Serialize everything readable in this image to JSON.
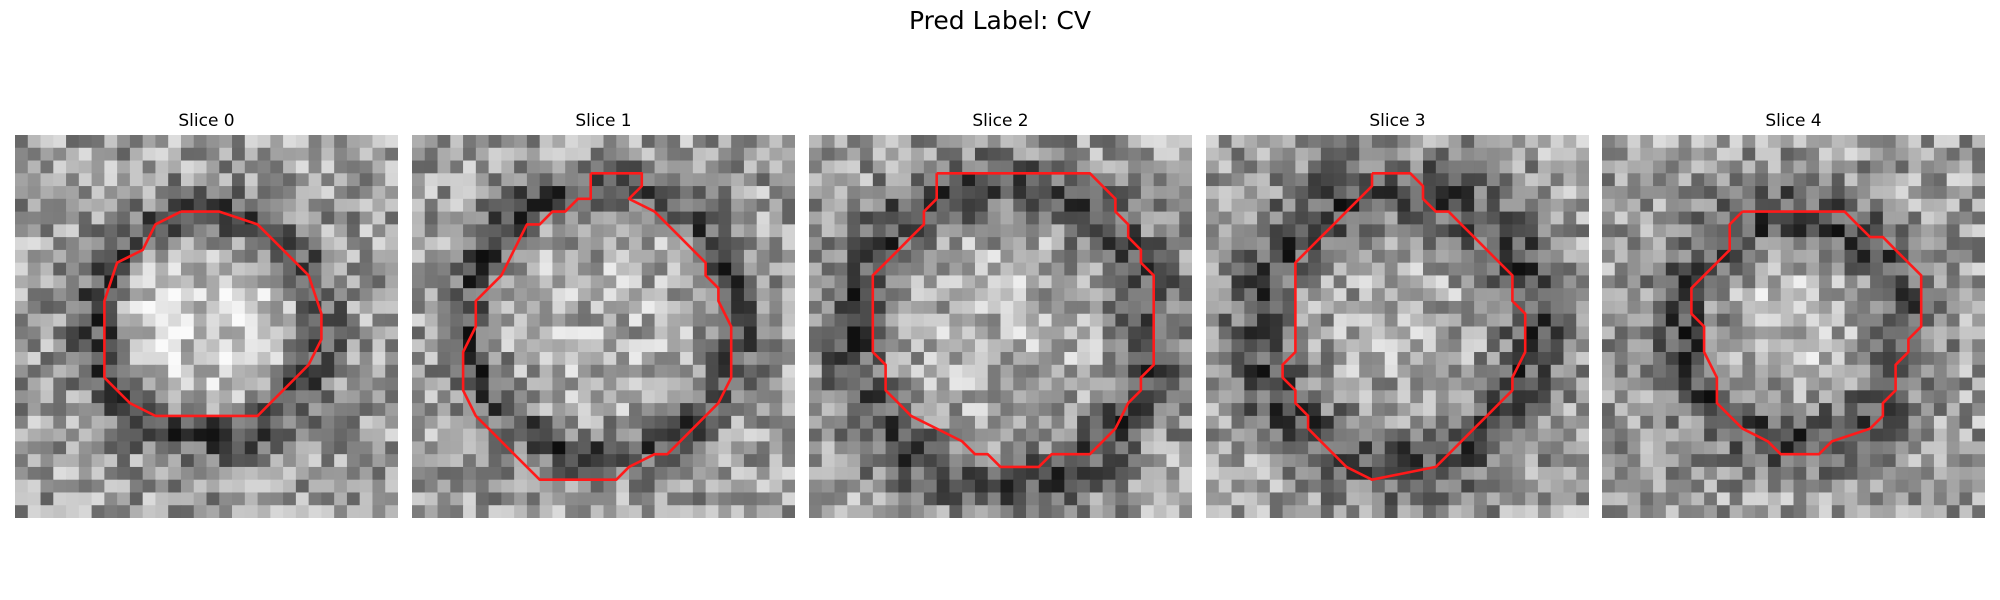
{
  "title": "Pred Label: CV",
  "panels": [
    {
      "label": "Slice 0"
    },
    {
      "label": "Slice 1"
    },
    {
      "label": "Slice 2"
    },
    {
      "label": "Slice 3"
    },
    {
      "label": "Slice 4"
    }
  ],
  "colors": {
    "contour": "#ff1a1a",
    "background": "#ffffff"
  },
  "grid_cells": 30
}
